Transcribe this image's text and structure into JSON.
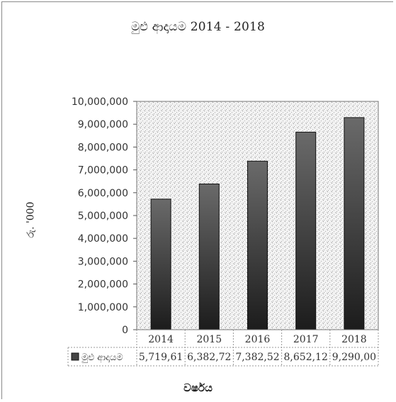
{
  "chart_data": {
    "type": "bar",
    "title": "මුළු ආදායම 2014 - 2018",
    "xlabel": "වර්ෂය",
    "ylabel": "රු. '000",
    "categories": [
      "2014",
      "2015",
      "2016",
      "2017",
      "2018"
    ],
    "series": [
      {
        "name": "මුළු ආදායම",
        "values": [
          5719610,
          6382720,
          7382520,
          8652120,
          9290000
        ],
        "table_labels": [
          "5,719,61",
          "6,382,72",
          "7,382,52",
          "8,652,12",
          "9,290,00"
        ],
        "color": "#333333"
      }
    ],
    "ylim": [
      0,
      10000000
    ],
    "y_ticks": [
      "0",
      "1,000,000",
      "2,000,000",
      "3,000,000",
      "4,000,000",
      "5,000,000",
      "6,000,000",
      "7,000,000",
      "8,000,000",
      "9,000,000",
      "10,000,000"
    ],
    "grid": false,
    "data_table": true
  }
}
